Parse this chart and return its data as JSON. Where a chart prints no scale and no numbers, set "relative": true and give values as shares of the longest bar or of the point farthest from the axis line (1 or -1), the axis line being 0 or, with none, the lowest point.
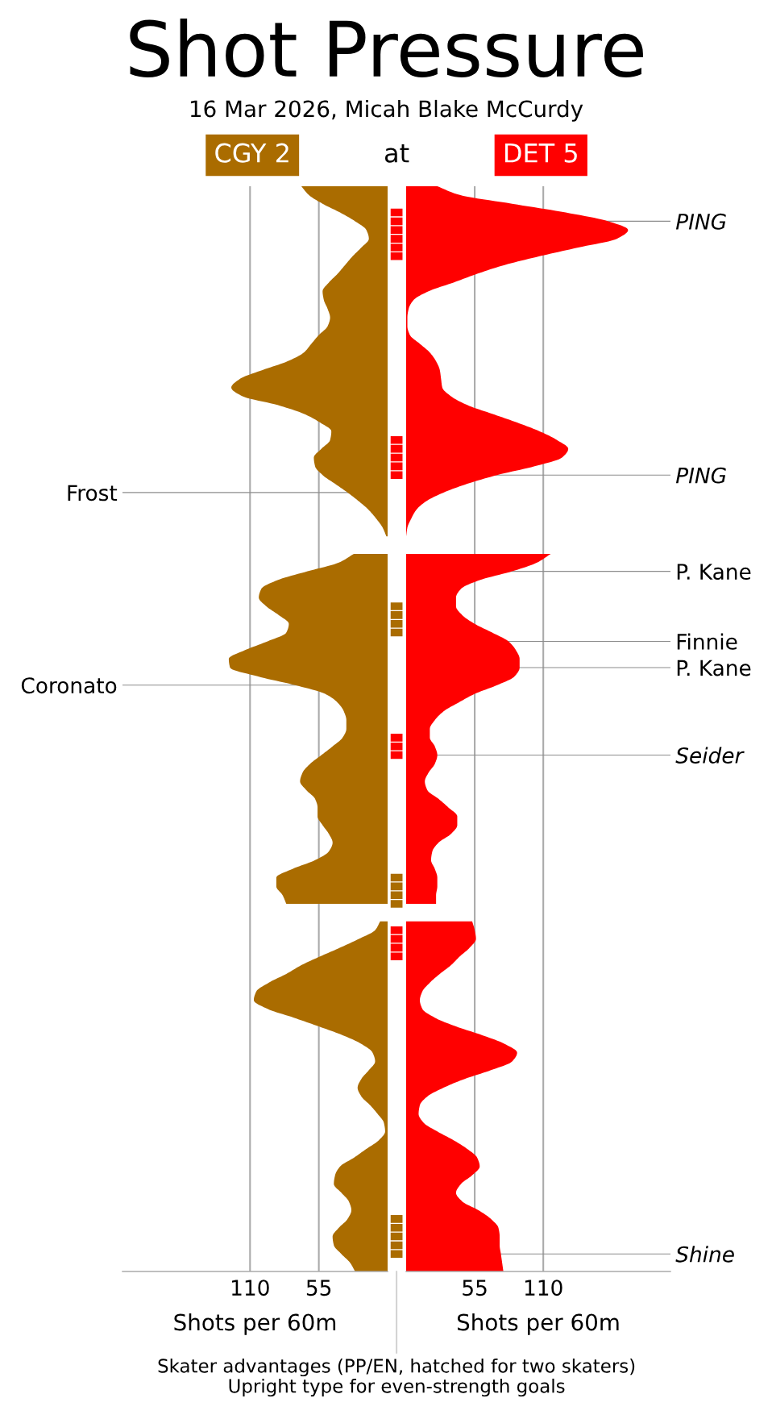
{
  "chart_data": [
    {
      "type": "area",
      "orientation": "horizontal",
      "categories": [
        null,
        null,
        null,
        null,
        null,
        null,
        null,
        null,
        null,
        null,
        null,
        null,
        null,
        null,
        null,
        null,
        null,
        null,
        null,
        null,
        null,
        null,
        null,
        null,
        null,
        null,
        null,
        null,
        null,
        null,
        null,
        null,
        null,
        null,
        null,
        "Frost",
        null,
        null,
        null,
        null,
        null,
        null,
        null,
        null,
        null,
        null,
        null,
        null,
        null,
        null,
        null,
        null,
        null,
        null,
        null,
        null,
        null,
        "Coronato",
        null,
        null,
        null,
        null,
        null,
        null,
        null,
        null,
        null,
        null,
        null,
        null,
        null,
        null,
        null,
        null,
        null,
        null,
        null,
        null,
        null,
        null,
        null,
        null,
        null,
        null,
        null,
        null,
        null,
        null,
        null,
        null,
        null,
        null,
        null,
        null,
        null,
        null,
        null,
        null,
        null,
        null,
        null,
        null,
        null,
        null,
        null,
        null,
        null,
        null,
        null,
        null,
        null,
        null,
        null,
        null,
        null,
        null,
        null,
        null,
        null,
        null,
        null,
        null,
        null,
        null,
        null
      ],
      "series": [
        {
          "name": "CGY 2",
          "color": "#aa6c00",
          "values": [
            69,
            63,
            52,
            38,
            26,
            17,
            15,
            21,
            28,
            34,
            40,
            47,
            52,
            51,
            48,
            46,
            48,
            55,
            61,
            67,
            80,
            100,
            118,
            125,
            116,
            88,
            67,
            54,
            45,
            46,
            53,
            59,
            58,
            52,
            42,
            32,
            23,
            15,
            9,
            4,
            1,
            null,
            27,
            39,
            64,
            88,
            101,
            103,
            97,
            87,
            79,
            81,
            96,
            114,
            127,
            126,
            104,
            74,
            50,
            40,
            35,
            33,
            33,
            36,
            44,
            53,
            62,
            68,
            70,
            65,
            58,
            56,
            56,
            52,
            47,
            44,
            47,
            58,
            76,
            89,
            89,
            84,
            81,
            null,
            6,
            10,
            23,
            38,
            54,
            69,
            81,
            95,
            105,
            107,
            96,
            75,
            55,
            36,
            21,
            12,
            10,
            15,
            21,
            24,
            21,
            14,
            8,
            3,
            2,
            7,
            17,
            27,
            38,
            42,
            43,
            37,
            31,
            29,
            32,
            39,
            44,
            43,
            37,
            30,
            26
          ]
        }
      ],
      "xlim": [
        212,
        0
      ],
      "xticks": [
        55,
        110
      ],
      "xlabel": "Shots per 60m",
      "grid": true
    },
    {
      "type": "bar",
      "orientation": "horizontal",
      "relative": true,
      "title": "Shot Pressure",
      "subtitle": "16 Mar 2026, Micah Blake McCurdy",
      "annotations": [
        "at",
        "Skater advantages (PP/EN, hatched for two skaters)",
        "Upright type for even-strength goals"
      ],
      "categories": [
        null,
        null,
        null,
        null,
        null,
        null,
        null,
        null,
        null,
        null,
        null,
        null,
        null,
        null,
        null,
        null,
        null,
        null,
        null,
        null,
        null,
        null,
        null,
        null,
        null,
        null,
        null,
        null,
        null,
        null,
        null,
        null,
        null,
        null,
        null,
        null,
        null,
        null,
        null,
        null,
        null,
        null,
        null,
        null,
        null,
        null,
        null,
        null,
        null,
        null,
        null,
        null,
        null,
        null,
        null,
        null,
        null,
        null,
        null,
        null,
        null,
        null,
        null,
        null,
        null,
        null,
        null,
        null,
        null,
        null,
        null,
        null,
        null,
        null,
        null,
        null,
        null,
        null,
        null,
        null,
        null,
        null,
        null,
        null,
        null,
        null,
        null,
        null,
        null,
        null,
        null,
        null,
        null,
        null,
        null,
        null,
        null,
        null,
        null,
        null,
        null,
        null,
        null,
        null,
        null,
        null,
        null,
        null,
        null,
        null,
        null,
        null,
        null,
        null,
        null,
        null,
        null,
        null,
        null,
        null,
        null,
        null,
        null,
        null,
        null
      ],
      "series": [
        {
          "color": "#aa6c00",
          "values": [
            null,
            null,
            null,
            null,
            null,
            null,
            null,
            null,
            null,
            null,
            null,
            null,
            null,
            null,
            null,
            null,
            null,
            null,
            null,
            null,
            null,
            null,
            null,
            null,
            null,
            null,
            null,
            null,
            null,
            null,
            null,
            null,
            null,
            null,
            null,
            null,
            null,
            null,
            null,
            null,
            null,
            null,
            null,
            null,
            null,
            null,
            null,
            null,
            1,
            1,
            1,
            1,
            null,
            null,
            null,
            null,
            null,
            null,
            null,
            null,
            null,
            null,
            null,
            null,
            null,
            null,
            null,
            null,
            null,
            null,
            null,
            null,
            null,
            null,
            null,
            null,
            null,
            null,
            null,
            1,
            1,
            1,
            1,
            null,
            null,
            null,
            null,
            null,
            null,
            null,
            null,
            null,
            null,
            null,
            null,
            null,
            null,
            null,
            null,
            null,
            null,
            null,
            null,
            null,
            null,
            null,
            null,
            null,
            null,
            null,
            null,
            null,
            null,
            null,
            null,
            null,
            null,
            null,
            1,
            1,
            1,
            1,
            1,
            null,
            null
          ]
        },
        {
          "color": "#ff0000",
          "values": [
            null,
            null,
            null,
            1,
            1,
            1,
            1,
            1,
            1,
            null,
            null,
            null,
            null,
            null,
            null,
            null,
            null,
            null,
            null,
            null,
            null,
            null,
            null,
            null,
            null,
            null,
            null,
            null,
            null,
            1,
            1,
            1,
            1,
            1,
            null,
            null,
            null,
            null,
            null,
            null,
            null,
            null,
            null,
            null,
            null,
            null,
            null,
            null,
            null,
            null,
            null,
            null,
            null,
            null,
            null,
            null,
            null,
            null,
            null,
            null,
            null,
            null,
            null,
            1,
            1,
            1,
            null,
            null,
            null,
            null,
            null,
            null,
            null,
            null,
            null,
            null,
            null,
            null,
            null,
            null,
            null,
            null,
            null,
            null,
            null,
            1,
            1,
            1,
            1,
            null,
            null,
            null,
            null,
            null,
            null,
            null,
            null,
            null,
            null,
            null,
            null,
            null,
            null,
            null,
            null,
            null,
            null,
            null,
            null,
            null,
            null,
            null,
            null,
            null,
            null,
            null,
            null,
            null,
            null,
            null,
            null,
            null,
            null,
            null,
            null
          ]
        }
      ]
    },
    {
      "type": "area",
      "orientation": "horizontal",
      "categories": [
        null,
        null,
        null,
        null,
        "PING",
        null,
        null,
        null,
        null,
        null,
        null,
        null,
        null,
        null,
        null,
        null,
        null,
        null,
        null,
        null,
        null,
        null,
        null,
        null,
        null,
        null,
        null,
        null,
        null,
        null,
        null,
        null,
        null,
        "PING",
        null,
        null,
        null,
        null,
        null,
        null,
        null,
        null,
        null,
        null,
        "P. Kane",
        null,
        null,
        null,
        null,
        null,
        null,
        null,
        "Finnie",
        null,
        null,
        "P. Kane",
        null,
        null,
        null,
        null,
        null,
        null,
        null,
        null,
        null,
        "Seider",
        null,
        null,
        null,
        null,
        null,
        null,
        null,
        null,
        null,
        null,
        null,
        null,
        null,
        null,
        null,
        null,
        null,
        null,
        null,
        null,
        null,
        null,
        null,
        null,
        null,
        null,
        null,
        null,
        null,
        null,
        null,
        null,
        null,
        null,
        null,
        null,
        null,
        null,
        null,
        null,
        null,
        null,
        null,
        null,
        null,
        null,
        null,
        null,
        null,
        null,
        null,
        null,
        null,
        null,
        null,
        null,
        "Shine",
        null,
        null
      ],
      "series": [
        {
          "name": "DET 5",
          "color": "#ff0000",
          "values": [
            25,
            43,
            85,
            128,
            162,
            178,
            169,
            138,
            107,
            79,
            57,
            38,
            18,
            6,
            2,
            1,
            1,
            3,
            11,
            19,
            24,
            27,
            28,
            29,
            36,
            49,
            69,
            89,
            107,
            121,
            130,
            125,
            103,
            73,
            49,
            30,
            16,
            8,
            4,
            1,
            0,
            null,
            116,
            105,
            85,
            59,
            44,
            40,
            40,
            45,
            55,
            69,
            82,
            88,
            91,
            91,
            87,
            73,
            55,
            42,
            30,
            23,
            19,
            19,
            23,
            25,
            23,
            18,
            15,
            17,
            26,
            34,
            41,
            41,
            36,
            26,
            21,
            20,
            23,
            25,
            25,
            24,
            24,
            null,
            53,
            55,
            56,
            51,
            43,
            36,
            27,
            19,
            13,
            11,
            13,
            23,
            40,
            61,
            79,
            89,
            85,
            68,
            47,
            30,
            17,
            11,
            10,
            14,
            25,
            38,
            49,
            57,
            59,
            53,
            44,
            40,
            45,
            58,
            68,
            74,
            75,
            75,
            76,
            77,
            78
          ]
        }
      ],
      "xlim": [
        0,
        212
      ],
      "xticks": [
        55,
        110
      ],
      "xlabel": "Shots per 60m",
      "grid": true
    }
  ]
}
